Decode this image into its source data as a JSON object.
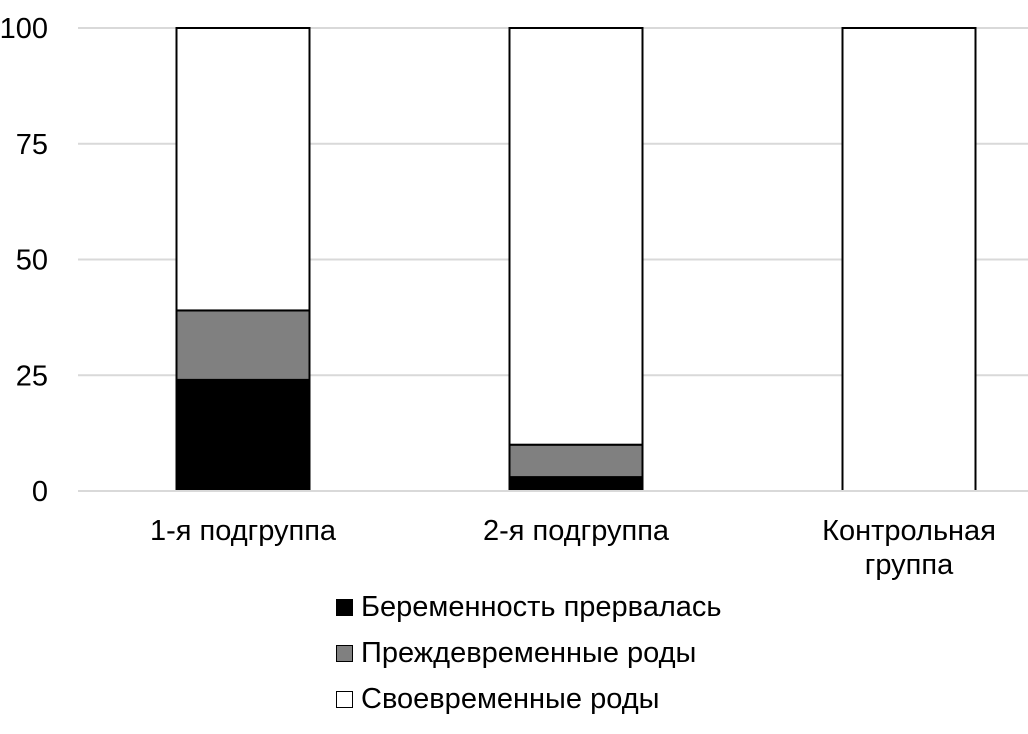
{
  "chart_data": {
    "type": "bar",
    "stacked": true,
    "categories": [
      "1-я подгруппа",
      "2-я подгруппа",
      "Контрольная группа"
    ],
    "category_lines": [
      [
        "1-я подгруппа"
      ],
      [
        "2-я подгруппа"
      ],
      [
        "Контрольная",
        "группа"
      ]
    ],
    "series": [
      {
        "name": "Беременность прервалась",
        "values": [
          24,
          3,
          0
        ],
        "color": "#000000"
      },
      {
        "name": "Преждевременные роды",
        "values": [
          15,
          7,
          0
        ],
        "color": "#808080"
      },
      {
        "name": "Своевременные роды",
        "values": [
          61,
          90,
          100
        ],
        "color": "#ffffff"
      }
    ],
    "ylim": [
      0,
      100
    ],
    "yticks": [
      0,
      25,
      50,
      75,
      100
    ],
    "grid": true,
    "legend_position": "bottom",
    "title": "",
    "xlabel": "",
    "ylabel": ""
  }
}
